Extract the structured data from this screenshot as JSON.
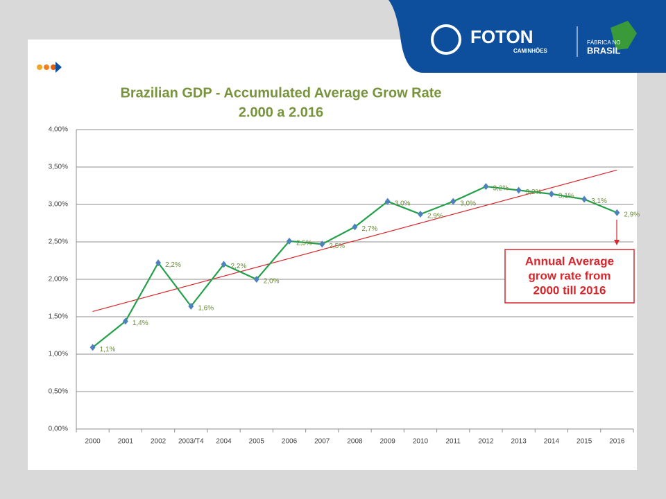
{
  "header": {
    "brand": "FOTON",
    "sub": "CAMINHÕES",
    "badge_top": "FÁBRICA NO",
    "badge_main": "BRASIL"
  },
  "chart_data": {
    "type": "line",
    "title": "Brazilian GDP -  Accumulated Average Grow Rate",
    "subtitle": "2.000 a 2.016",
    "categories": [
      "2000",
      "2001",
      "2002",
      "2003/T4",
      "2004",
      "2005",
      "2006",
      "2007",
      "2008",
      "2009",
      "2010",
      "2011",
      "2012",
      "2013",
      "2014",
      "2015",
      "2016"
    ],
    "series": [
      {
        "color": "#22a04a",
        "marker_color": "#4f81bd",
        "values": [
          1.09,
          1.44,
          2.22,
          1.64,
          2.2,
          2.0,
          2.51,
          2.47,
          2.7,
          3.04,
          2.87,
          3.04,
          3.24,
          3.19,
          3.14,
          3.07,
          2.89
        ],
        "value_labels": [
          "1,1%",
          "1,4%",
          "2,2%",
          "1,6%",
          "2,2%",
          "2,0%",
          "2,5%",
          "2,5%",
          "2,7%",
          "3,0%",
          "2,9%",
          "3,0%",
          "3,2%",
          "3,2%",
          "3,1%",
          "3,1%",
          "2,9%"
        ]
      }
    ],
    "trend": {
      "color": "#d7262b",
      "values": [
        1.57,
        3.46
      ]
    },
    "ylim": [
      0,
      4
    ],
    "yticks": [
      {
        "value": 0,
        "label": "0,00%"
      },
      {
        "value": 0.5,
        "label": "0,50%"
      },
      {
        "value": 1,
        "label": "1,00%"
      },
      {
        "value": 1.5,
        "label": "1,50%"
      },
      {
        "value": 2,
        "label": "2,00%"
      },
      {
        "value": 2.5,
        "label": "2,50%"
      },
      {
        "value": 3,
        "label": "3,00%"
      },
      {
        "value": 3.5,
        "label": "3,50%"
      },
      {
        "value": 4,
        "label": "4,00%"
      }
    ],
    "grid": true,
    "annotation": [
      "Annual Average",
      "grow rate from",
      "2000 till 2016"
    ]
  }
}
